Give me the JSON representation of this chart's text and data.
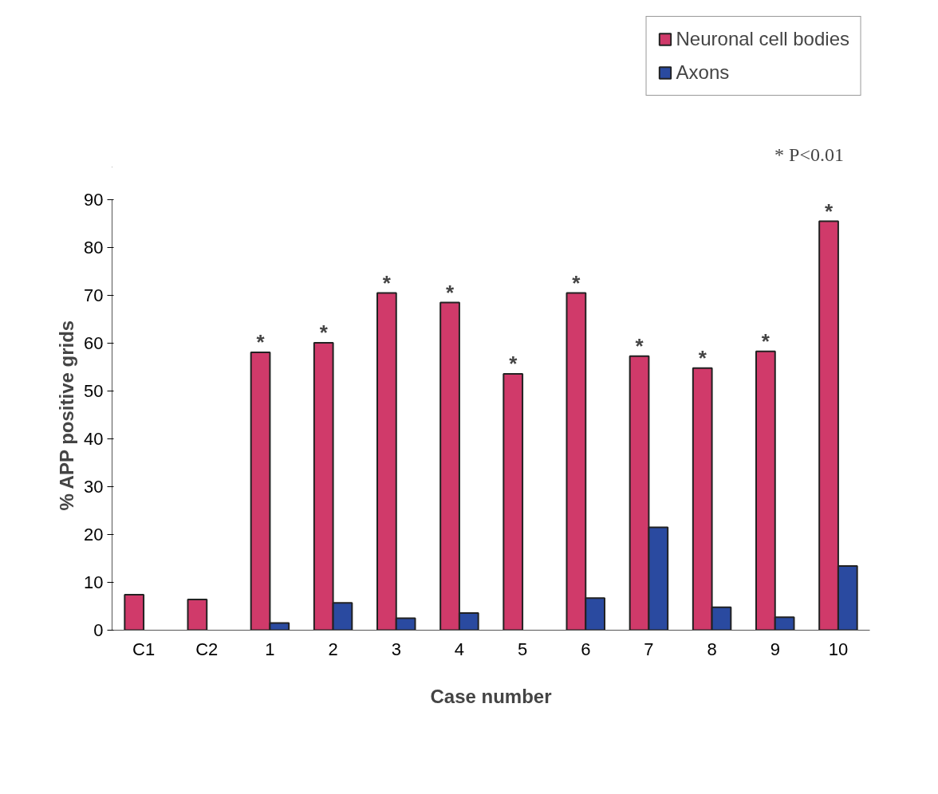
{
  "chart_data": {
    "type": "bar",
    "xlabel": "Case number",
    "ylabel": "% APP positive grids",
    "categories": [
      "C1",
      "C2",
      "1",
      "2",
      "3",
      "4",
      "5",
      "6",
      "7",
      "8",
      "9",
      "10"
    ],
    "series": [
      {
        "name": "Neuronal cell bodies",
        "color": "#d03a6a",
        "values": [
          7.4,
          6.4,
          58.1,
          60.1,
          70.5,
          68.5,
          53.6,
          70.5,
          57.3,
          54.8,
          58.3,
          85.5
        ]
      },
      {
        "name": "Axons",
        "color": "#2a4aa0",
        "values": [
          0,
          0,
          1.5,
          5.7,
          2.5,
          3.6,
          0,
          6.7,
          21.5,
          4.8,
          2.7,
          13.4
        ]
      }
    ],
    "ylim": [
      0,
      90
    ],
    "yticks": [
      0,
      10,
      20,
      30,
      40,
      50,
      60,
      70,
      80,
      90
    ],
    "grid": false,
    "legend": "top right",
    "annotations": [
      "* P<0.01",
      {
        "text": "*",
        "x": "1",
        "y": 58.1
      },
      {
        "text": "*",
        "x": "2",
        "y": 60.1
      },
      {
        "text": "*",
        "x": "3",
        "y": 70.5
      },
      {
        "text": "*",
        "x": "4",
        "y": 68.5
      },
      {
        "text": "*",
        "x": "5",
        "y": 53.6
      },
      {
        "text": "*",
        "x": "6",
        "y": 70.5
      },
      {
        "text": "*",
        "x": "7",
        "y": 57.3
      },
      {
        "text": "*",
        "x": "8",
        "y": 54.8
      },
      {
        "text": "*",
        "x": "9",
        "y": 58.3
      },
      {
        "text": "*",
        "x": "10",
        "y": 85.5
      }
    ]
  }
}
